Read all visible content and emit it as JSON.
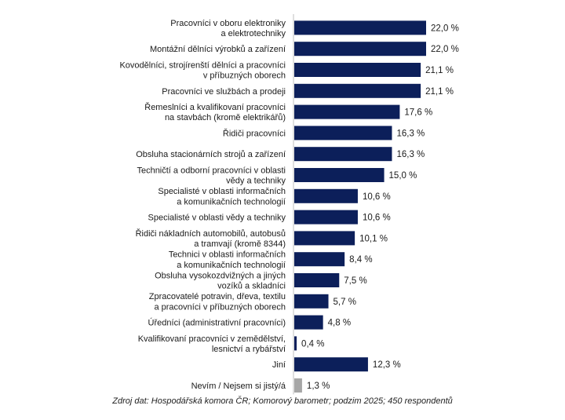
{
  "chart_data": {
    "type": "bar",
    "orientation": "horizontal",
    "categories": [
      [
        "Pracovníci v oboru elektroniky",
        "a elektrotechniky"
      ],
      [
        "Montážní dělníci výrobků a zařízení"
      ],
      [
        "Kovodělníci, strojírenští dělníci a pracovníci",
        "v příbuzných oborech"
      ],
      [
        "Pracovníci ve službách a prodeji"
      ],
      [
        "Řemeslníci a kvalifikovaní pracovníci",
        "na stavbách (kromě elektrikářů)"
      ],
      [
        "Řidiči pracovníci"
      ],
      [
        "Obsluha stacionárních strojů a zařízení"
      ],
      [
        "Techničtí a odborní pracovníci v oblasti",
        "vědy a techniky"
      ],
      [
        "Specialisté v oblasti informačních",
        "a komunikačních technologií"
      ],
      [
        "Specialisté v oblasti vědy a techniky"
      ],
      [
        "Řidiči nákladních automobilů, autobusů",
        "a tramvají (kromě 8344)"
      ],
      [
        "Technici v oblasti informačních",
        "a komunikačních technologií"
      ],
      [
        "Obsluha vysokozdvižných a jiných",
        "vozíků a skladníci"
      ],
      [
        "Zpracovatelé potravin, dřeva, textilu",
        "a pracovníci v příbuzných oborech"
      ],
      [
        "Úředníci (administrativní pracovníci)"
      ],
      [
        "Kvalifikovaní pracovníci v zemědělství,",
        "lesnictví a rybářství"
      ],
      [
        "Jiní"
      ],
      [
        "Nevím / Nejsem si jistý/á"
      ]
    ],
    "values": [
      22.0,
      22.0,
      21.1,
      21.1,
      17.6,
      16.3,
      16.3,
      15.0,
      10.6,
      10.6,
      10.1,
      8.4,
      7.5,
      5.7,
      4.8,
      0.4,
      12.3,
      1.3
    ],
    "value_labels": [
      "22,0 %",
      "22,0 %",
      "21,1 %",
      "21,1 %",
      "17,6 %",
      "16,3 %",
      "16,3 %",
      "15,0 %",
      "10,6 %",
      "10,6 %",
      "10,1 %",
      "8,4 %",
      "7,5 %",
      "5,7 %",
      "4,8 %",
      "0,4 %",
      "12,3 %",
      "1,3 %"
    ],
    "bar_colors": [
      "#0c1f5a",
      "#0c1f5a",
      "#0c1f5a",
      "#0c1f5a",
      "#0c1f5a",
      "#0c1f5a",
      "#0c1f5a",
      "#0c1f5a",
      "#0c1f5a",
      "#0c1f5a",
      "#0c1f5a",
      "#0c1f5a",
      "#0c1f5a",
      "#0c1f5a",
      "#0c1f5a",
      "#0c1f5a",
      "#0c1f5a",
      "#a6a6a6"
    ],
    "xlim": [
      0,
      22
    ],
    "grid": false,
    "legend": "none",
    "source": "Zdroj dat: Hospodářská komora ČR; Komorový barometr; podzim 2025; 450 respondentů"
  }
}
